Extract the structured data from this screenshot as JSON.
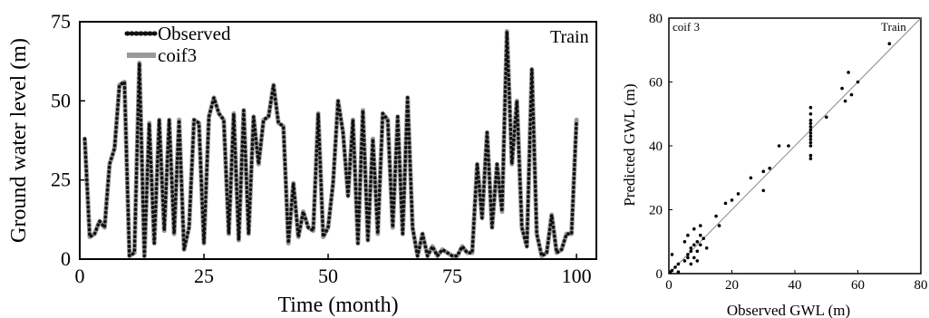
{
  "chart_data": [
    {
      "type": "line",
      "title": "",
      "corner_label": "Train",
      "xlabel": "Time (month)",
      "ylabel": "Ground water level (m)",
      "xlim": [
        0,
        104
      ],
      "ylim": [
        0,
        75
      ],
      "xticks": [
        0,
        25,
        50,
        75,
        100
      ],
      "yticks": [
        0,
        25,
        50,
        75
      ],
      "grid": false,
      "legend_position": "top-left",
      "x": [
        1,
        2,
        3,
        4,
        5,
        6,
        7,
        8,
        9,
        10,
        11,
        12,
        13,
        14,
        15,
        16,
        17,
        18,
        19,
        20,
        21,
        22,
        23,
        24,
        25,
        26,
        27,
        28,
        29,
        30,
        31,
        32,
        33,
        34,
        35,
        36,
        37,
        38,
        39,
        40,
        41,
        42,
        43,
        44,
        45,
        46,
        47,
        48,
        49,
        50,
        51,
        52,
        53,
        54,
        55,
        56,
        57,
        58,
        59,
        60,
        61,
        62,
        63,
        64,
        65,
        66,
        67,
        68,
        69,
        70,
        71,
        72,
        73,
        74,
        75,
        76,
        77,
        78,
        79,
        80,
        81,
        82,
        83,
        84,
        85,
        86,
        87,
        88,
        89,
        90,
        91,
        92,
        93,
        94,
        95,
        96,
        97,
        98,
        99,
        100
      ],
      "series": [
        {
          "name": "Observed",
          "color": "#111111",
          "style": "dotted",
          "values": [
            38,
            7,
            8,
            12,
            10,
            30,
            35,
            55,
            56,
            1,
            2,
            62,
            1,
            43,
            5,
            44,
            9,
            44,
            8,
            44,
            3,
            10,
            44,
            43,
            5,
            45,
            51,
            46,
            44,
            8,
            46,
            6,
            47,
            8,
            45,
            30,
            44,
            45,
            55,
            43,
            42,
            5,
            24,
            7,
            15,
            10,
            9,
            46,
            7,
            10,
            24,
            50,
            40,
            20,
            44,
            5,
            47,
            6,
            38,
            8,
            46,
            44,
            10,
            45,
            8,
            51,
            10,
            1,
            8,
            1,
            4,
            1,
            3,
            2,
            1,
            1,
            4,
            2,
            2,
            30,
            13,
            40,
            10,
            30,
            15,
            72,
            30,
            50,
            10,
            4,
            60,
            8,
            1,
            2,
            14,
            2,
            3,
            8,
            8,
            44
          ]
        },
        {
          "name": "coif3",
          "color": "#9a9a9a",
          "style": "solid",
          "values": [
            38,
            7,
            8,
            12,
            10,
            30,
            35,
            55,
            56,
            1,
            2,
            62,
            1,
            43,
            5,
            44,
            9,
            44,
            8,
            44,
            3,
            10,
            44,
            43,
            5,
            45,
            51,
            46,
            44,
            8,
            46,
            6,
            47,
            8,
            45,
            30,
            44,
            45,
            55,
            43,
            42,
            5,
            24,
            7,
            15,
            10,
            9,
            46,
            7,
            10,
            24,
            50,
            40,
            20,
            44,
            5,
            47,
            6,
            38,
            8,
            46,
            44,
            10,
            45,
            8,
            51,
            10,
            1,
            8,
            1,
            4,
            1,
            3,
            2,
            1,
            1,
            4,
            2,
            2,
            30,
            13,
            40,
            10,
            30,
            15,
            72,
            30,
            50,
            10,
            4,
            60,
            8,
            1,
            2,
            14,
            2,
            3,
            8,
            8,
            44
          ]
        }
      ]
    },
    {
      "type": "scatter",
      "title": "",
      "corner_label": "Train",
      "inner_label": "coif 3",
      "xlabel": "Observed GWL (m)",
      "ylabel": "Predicted GWL (m)",
      "xlim": [
        0,
        80
      ],
      "ylim": [
        0,
        80
      ],
      "xticks": [
        0,
        20,
        40,
        60,
        80
      ],
      "yticks": [
        0,
        20,
        40,
        60,
        80
      ],
      "grid": false,
      "reference_line": "1:1",
      "points": [
        [
          0.5,
          0.5
        ],
        [
          1,
          1
        ],
        [
          1,
          6
        ],
        [
          2,
          2
        ],
        [
          3,
          3
        ],
        [
          5,
          4
        ],
        [
          6,
          6
        ],
        [
          7,
          7
        ],
        [
          8,
          5
        ],
        [
          9,
          10
        ],
        [
          10,
          12
        ],
        [
          7,
          8
        ],
        [
          8,
          9
        ],
        [
          6,
          5
        ],
        [
          9,
          7
        ],
        [
          8,
          14
        ],
        [
          10,
          15
        ],
        [
          11,
          11
        ],
        [
          12,
          8
        ],
        [
          5,
          10
        ],
        [
          7,
          3
        ],
        [
          9,
          4
        ],
        [
          6,
          12
        ],
        [
          10,
          9
        ],
        [
          3,
          0.5
        ],
        [
          15,
          18
        ],
        [
          16,
          15
        ],
        [
          18,
          22
        ],
        [
          20,
          23
        ],
        [
          22,
          25
        ],
        [
          26,
          30
        ],
        [
          30,
          26
        ],
        [
          30,
          32
        ],
        [
          32,
          33
        ],
        [
          35,
          40
        ],
        [
          38,
          40
        ],
        [
          45,
          44
        ],
        [
          45,
          46
        ],
        [
          45,
          42
        ],
        [
          45,
          48
        ],
        [
          45,
          50
        ],
        [
          45,
          52
        ],
        [
          45,
          36
        ],
        [
          45,
          37
        ],
        [
          45,
          40
        ],
        [
          45,
          41
        ],
        [
          45,
          43
        ],
        [
          45,
          45
        ],
        [
          45,
          47
        ],
        [
          50,
          49
        ],
        [
          55,
          58
        ],
        [
          56,
          54
        ],
        [
          57,
          63
        ],
        [
          58,
          56
        ],
        [
          60,
          60
        ],
        [
          70,
          72
        ]
      ]
    }
  ]
}
